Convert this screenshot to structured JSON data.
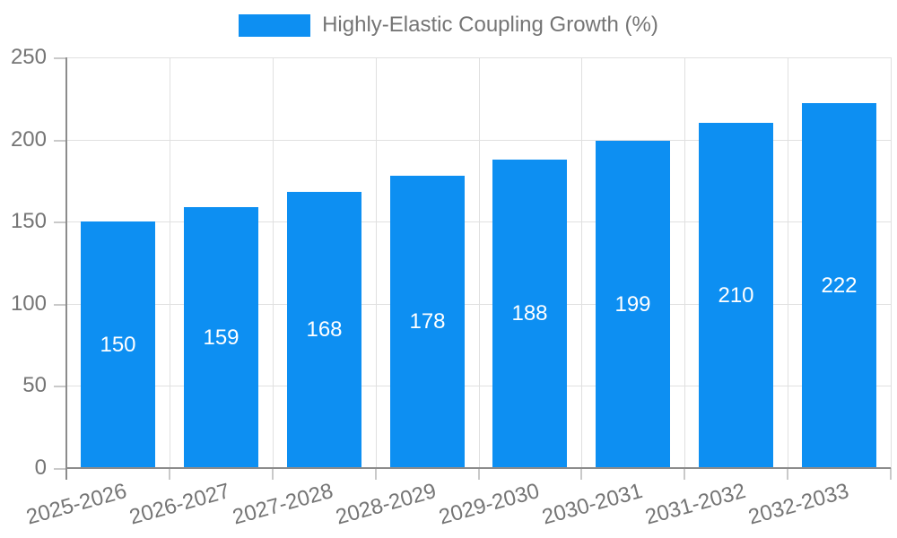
{
  "legend": {
    "label": "Highly-Elastic Coupling Growth (%)",
    "swatch_color": "#0d8ff2"
  },
  "chart_data": {
    "type": "bar",
    "title": "",
    "categories": [
      "2025-2026",
      "2026-2027",
      "2027-2028",
      "2028-2029",
      "2029-2030",
      "2030-2031",
      "2031-2032",
      "2032-2033"
    ],
    "series": [
      {
        "name": "Highly-Elastic Coupling Growth (%)",
        "values": [
          150,
          159,
          168,
          178,
          188,
          199,
          210,
          222
        ]
      }
    ],
    "xlabel": "",
    "ylabel": "",
    "ylim": [
      0,
      250
    ],
    "yticks": [
      0,
      50,
      100,
      150,
      200,
      250
    ],
    "grid": true,
    "legend_position": "top",
    "bar_color": "#0d8ff2",
    "value_label_color": "#ffffff",
    "value_label_position": "inside-center"
  },
  "colors": {
    "bar": "#0d8ff2",
    "grid": "#e0e0e0",
    "axis": "#8c8c8c",
    "tick": "#c9c9c9",
    "label_text": "#757575",
    "value_text": "#ffffff",
    "background": "#ffffff"
  }
}
